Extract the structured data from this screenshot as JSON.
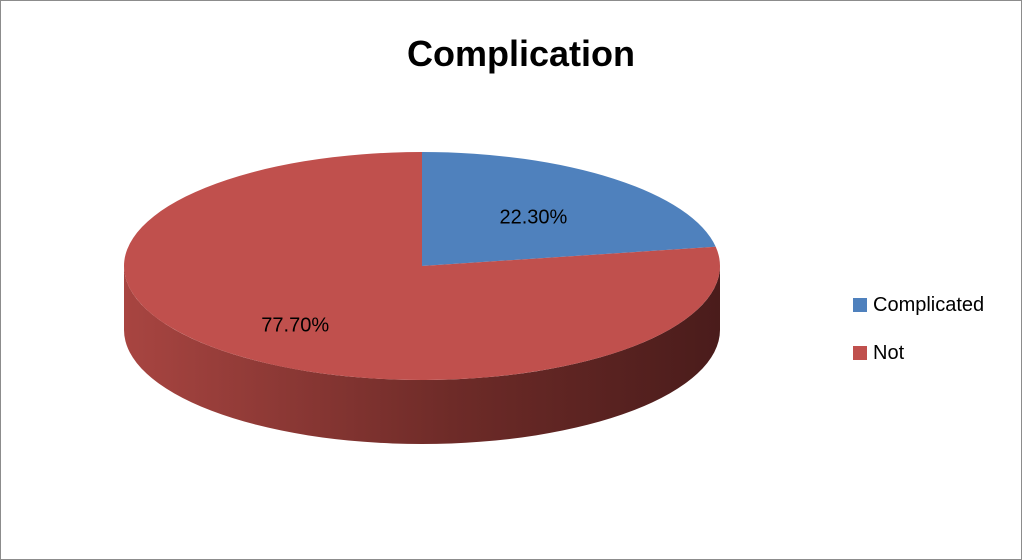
{
  "chart_data": {
    "type": "pie",
    "title": "Complication",
    "categories": [
      "Complicated",
      "Not"
    ],
    "values": [
      22.3,
      77.7
    ],
    "value_labels": [
      "22.30%",
      "77.70%"
    ],
    "colors": [
      "#4f81bd",
      "#c0504d"
    ],
    "style": "3d",
    "legend_position": "right"
  }
}
